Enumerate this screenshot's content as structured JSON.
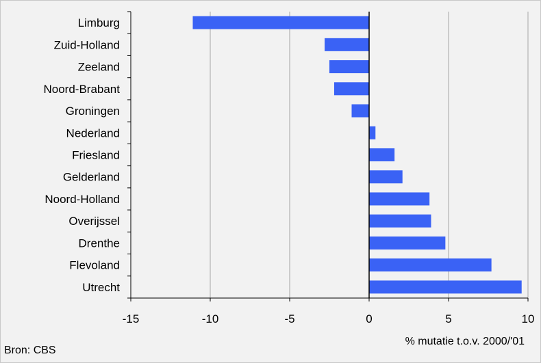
{
  "chart_data": {
    "type": "bar",
    "orientation": "horizontal",
    "title": "",
    "categories": [
      "Limburg",
      "Zuid-Holland",
      "Zeeland",
      "Noord-Brabant",
      "Groningen",
      "Nederland",
      "Friesland",
      "Gelderland",
      "Noord-Holland",
      "Overijssel",
      "Drenthe",
      "Flevoland",
      "Utrecht"
    ],
    "values": [
      -11.1,
      -2.8,
      -2.5,
      -2.2,
      -1.1,
      0.4,
      1.6,
      2.1,
      3.8,
      3.9,
      4.8,
      7.7,
      9.6
    ],
    "xlabel": "% mutatie t.o.v. 2000/'01",
    "ylabel": "",
    "xlim": [
      -15,
      10
    ],
    "x_ticks": [
      "-15",
      "-10",
      "-5",
      "0",
      "5",
      "10"
    ],
    "grid": true,
    "bar_color": "#3a62f5",
    "source": "Bron: CBS"
  }
}
